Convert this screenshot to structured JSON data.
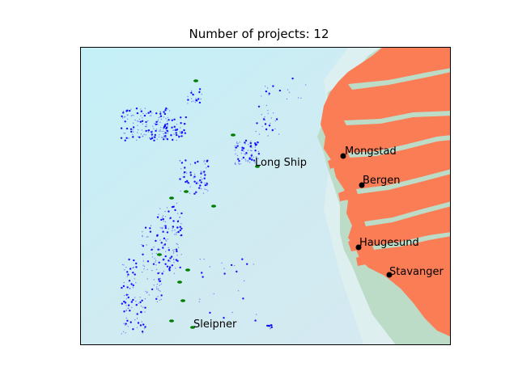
{
  "title": "Number of projects: 12",
  "colors": {
    "sea": "#cdebf2",
    "sea_light": "#c4f1f8",
    "land": "#fb7d55",
    "coast": "#bfdcd0",
    "wells": "#0000ff",
    "projects": "#008000",
    "city_marker": "#000000"
  },
  "cities": [
    {
      "name": "Mongstad"
    },
    {
      "name": "Bergen"
    },
    {
      "name": "Haugesund"
    },
    {
      "name": "Stavanger"
    }
  ],
  "labeled_projects": [
    {
      "name": "Long Ship"
    },
    {
      "name": "Sleipner"
    }
  ],
  "project_count": 12
}
